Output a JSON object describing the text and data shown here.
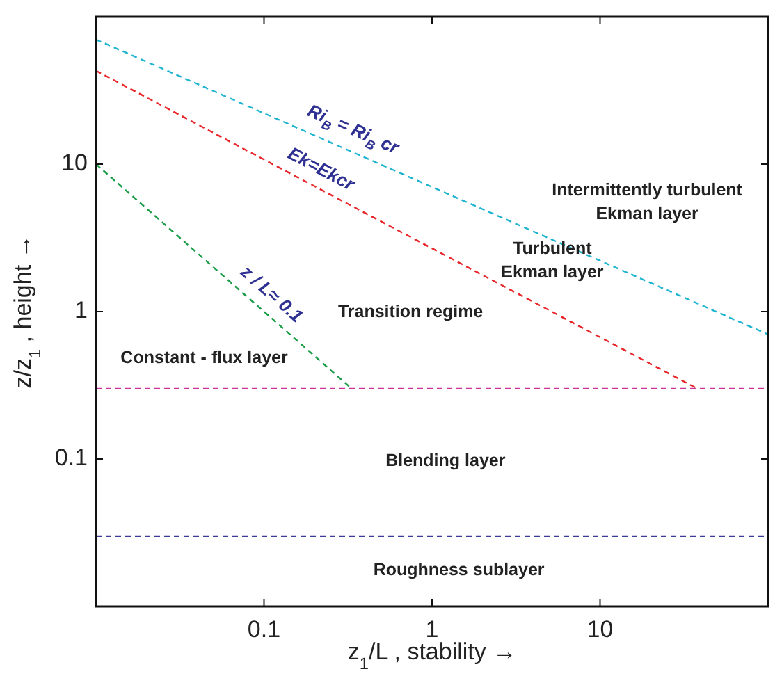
{
  "chart_data": {
    "type": "line",
    "xlabel": "z$_{1}$/L , stability →",
    "ylabel": "z/z$_{1}$ ,  height →",
    "log": "xy",
    "xlim": [
      0.01,
      100
    ],
    "ylim": [
      0.01,
      100
    ],
    "xticks": [
      0.1,
      1,
      10
    ],
    "yticks": [
      0.1,
      1,
      10
    ],
    "line_style": "dashed",
    "series": [
      {
        "name": "Ri$_{B}$ = Ri$_{B}$ cr",
        "color": "#1fb5d0",
        "x": [
          0.01,
          100
        ],
        "values": [
          70,
          0.7
        ]
      },
      {
        "name": "Ek=Ekcr",
        "color": "#e8262a",
        "x": [
          0.01,
          38
        ],
        "values": [
          43,
          0.3
        ]
      },
      {
        "name": "z / L≈ 0.1",
        "color": "#1a9c47",
        "x": [
          0.01,
          0.333
        ],
        "values": [
          10,
          0.3
        ]
      }
    ],
    "ref_lines": [
      {
        "axis": "y",
        "value": 0.3,
        "color": "#cc3399",
        "line_style": "dashed"
      },
      {
        "axis": "y",
        "value": 0.03,
        "color": "#3a3a9a",
        "line_style": "dashed"
      }
    ],
    "annotations": [
      "Intermittently turbulent\nEkman layer",
      "Turbulent\nEkman layer",
      "Transition regime",
      "Constant - flux layer",
      "Blending layer",
      "Roughness sublayer"
    ]
  }
}
